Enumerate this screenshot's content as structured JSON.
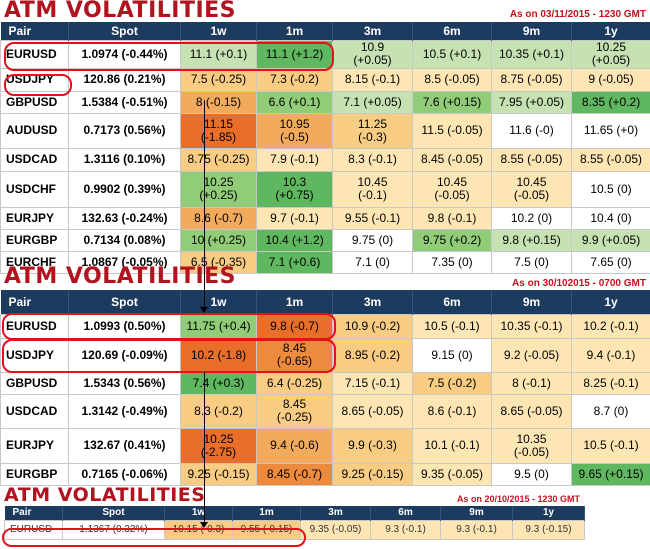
{
  "colors": {
    "header_bg": "#1d3a5f",
    "title_red": "#b3121f",
    "highlight_red": "#e3111b",
    "scale": {
      "g1": "#5fb85f",
      "g2": "#91cc78",
      "g3": "#c6e2b2",
      "y1": "#fde6b3",
      "y2": "#f8cc82",
      "y3": "#f2aa5c",
      "y4": "#ec8a3d",
      "o1": "#e96e2a",
      "w": "#ffffff"
    }
  },
  "panel1": {
    "title": "ATM VOLATILITIES",
    "asof": "As on 03/11/2015 - 1230 GMT",
    "headers": [
      "Pair",
      "Spot",
      "1w",
      "1m",
      "3m",
      "6m",
      "9m",
      "1y"
    ],
    "rows": [
      {
        "pair": "EURUSD",
        "spot": "1.0974 (-0.44%)",
        "cells": [
          {
            "t": "11.1 (+0.1)",
            "c": "g3"
          },
          {
            "t": "11.1 (+1.2)",
            "c": "g1"
          },
          {
            "t": "10.9\n(+0.05)",
            "c": "g3"
          },
          {
            "t": "10.5 (+0.1)",
            "c": "g3"
          },
          {
            "t": "10.35 (+0.1)",
            "c": "g3"
          },
          {
            "t": "10.25\n(+0.05)",
            "c": "g3"
          }
        ]
      },
      {
        "pair": "USDJPY",
        "spot": "120.86 (0.21%)",
        "cells": [
          {
            "t": "7.5 (-0.25)",
            "c": "y2"
          },
          {
            "t": "7.3 (-0.2)",
            "c": "y2"
          },
          {
            "t": "8.15 (-0.1)",
            "c": "y1"
          },
          {
            "t": "8.5 (-0.05)",
            "c": "y1"
          },
          {
            "t": "8.75 (-0.05)",
            "c": "y1"
          },
          {
            "t": "9 (-0.05)",
            "c": "y1"
          }
        ]
      },
      {
        "pair": "GBPUSD",
        "spot": "1.5384 (-0.51%)",
        "cells": [
          {
            "t": "8 (-0.15)",
            "c": "y3"
          },
          {
            "t": "6.6 (+0.1)",
            "c": "g2"
          },
          {
            "t": "7.1 (+0.05)",
            "c": "g3"
          },
          {
            "t": "7.6 (+0.15)",
            "c": "g2"
          },
          {
            "t": "7.95 (+0.05)",
            "c": "g3"
          },
          {
            "t": "8.35 (+0.2)",
            "c": "g1"
          }
        ]
      },
      {
        "pair": "AUDUSD",
        "spot": "0.7173 (0.56%)",
        "cells": [
          {
            "t": "11.15\n(-1.85)",
            "c": "o1"
          },
          {
            "t": "10.95\n(-0.5)",
            "c": "y3"
          },
          {
            "t": "11.25\n(-0.3)",
            "c": "y2"
          },
          {
            "t": "11.5 (-0.05)",
            "c": "y1"
          },
          {
            "t": "11.6 (-0)",
            "c": "w"
          },
          {
            "t": "11.65 (+0)",
            "c": "w"
          }
        ]
      },
      {
        "pair": "USDCAD",
        "spot": "1.3116 (0.10%)",
        "cells": [
          {
            "t": "8.75 (-0.25)",
            "c": "y2"
          },
          {
            "t": "7.9 (-0.1)",
            "c": "y1"
          },
          {
            "t": "8.3 (-0.1)",
            "c": "y1"
          },
          {
            "t": "8.45 (-0.05)",
            "c": "y1"
          },
          {
            "t": "8.55 (-0.05)",
            "c": "y1"
          },
          {
            "t": "8.55 (-0.05)",
            "c": "y1"
          }
        ]
      },
      {
        "pair": "USDCHF",
        "spot": "0.9902 (0.39%)",
        "cells": [
          {
            "t": "10.25\n(+0.25)",
            "c": "g2"
          },
          {
            "t": "10.3\n(+0.75)",
            "c": "g1"
          },
          {
            "t": "10.45\n(-0.1)",
            "c": "y1"
          },
          {
            "t": "10.45\n(-0.05)",
            "c": "y1"
          },
          {
            "t": "10.45\n(-0.05)",
            "c": "y1"
          },
          {
            "t": "10.5 (0)",
            "c": "w"
          }
        ]
      },
      {
        "pair": "EURJPY",
        "spot": "132.63 (-0.24%)",
        "cells": [
          {
            "t": "8.6 (-0.7)",
            "c": "y3"
          },
          {
            "t": "9.7 (-0.1)",
            "c": "y1"
          },
          {
            "t": "9.55 (-0.1)",
            "c": "y1"
          },
          {
            "t": "9.8 (-0.1)",
            "c": "y1"
          },
          {
            "t": "10.2 (0)",
            "c": "w"
          },
          {
            "t": "10.4 (0)",
            "c": "w"
          }
        ]
      },
      {
        "pair": "EURGBP",
        "spot": "0.7134 (0.08%)",
        "cells": [
          {
            "t": "10 (+0.25)",
            "c": "g2"
          },
          {
            "t": "10.4 (+1.2)",
            "c": "g1"
          },
          {
            "t": "9.75 (0)",
            "c": "w"
          },
          {
            "t": "9.75 (+0.2)",
            "c": "g2"
          },
          {
            "t": "9.8 (+0.15)",
            "c": "g3"
          },
          {
            "t": "9.9 (+0.05)",
            "c": "g3"
          }
        ]
      },
      {
        "pair": "EURCHF",
        "spot": "1.0867 (-0.05%)",
        "cells": [
          {
            "t": "6.5 (-0.35)",
            "c": "y2"
          },
          {
            "t": "7.1 (+0.6)",
            "c": "g1"
          },
          {
            "t": "7.1 (0)",
            "c": "w"
          },
          {
            "t": "7.35 (0)",
            "c": "w"
          },
          {
            "t": "7.5 (0)",
            "c": "w"
          },
          {
            "t": "7.65 (0)",
            "c": "w"
          }
        ]
      }
    ]
  },
  "panel2": {
    "title": "ATM VOLATILITIES",
    "asof": "As on 30/102015 - 0700 GMT",
    "headers": [
      "Pair",
      "Spot",
      "1w",
      "1m",
      "3m",
      "6m",
      "9m",
      "1y"
    ],
    "rows": [
      {
        "pair": "EURUSD",
        "spot": "1.0993 (0.50%)",
        "cells": [
          {
            "t": "11.75 (+0.4)",
            "c": "g2"
          },
          {
            "t": "9.8 (-0.7)",
            "c": "o1"
          },
          {
            "t": "10.9 (-0.2)",
            "c": "y2"
          },
          {
            "t": "10.5 (-0.1)",
            "c": "y1"
          },
          {
            "t": "10.35 (-0.1)",
            "c": "y1"
          },
          {
            "t": "10.2 (-0.1)",
            "c": "y1"
          }
        ]
      },
      {
        "pair": "USDJPY",
        "spot": "120.69 (-0.09%)",
        "cells": [
          {
            "t": "10.2 (-1.8)",
            "c": "o1"
          },
          {
            "t": "8.45\n(-0.65)",
            "c": "y4"
          },
          {
            "t": "8.95 (-0.2)",
            "c": "y2"
          },
          {
            "t": "9.15 (0)",
            "c": "w"
          },
          {
            "t": "9.2 (-0.05)",
            "c": "y1"
          },
          {
            "t": "9.4 (-0.1)",
            "c": "y1"
          }
        ]
      },
      {
        "pair": "GBPUSD",
        "spot": "1.5343 (0.56%)",
        "cells": [
          {
            "t": "7.4 (+0.3)",
            "c": "g1"
          },
          {
            "t": "6.4 (-0.25)",
            "c": "y2"
          },
          {
            "t": "7.15 (-0.1)",
            "c": "y1"
          },
          {
            "t": "7.5 (-0.2)",
            "c": "y2"
          },
          {
            "t": "8 (-0.1)",
            "c": "y1"
          },
          {
            "t": "8.25 (-0.1)",
            "c": "y1"
          }
        ]
      },
      {
        "pair": "USDCAD",
        "spot": "1.3142 (-0.49%)",
        "cells": [
          {
            "t": "8.3 (-0.2)",
            "c": "y2"
          },
          {
            "t": "8.45\n(-0.25)",
            "c": "y2"
          },
          {
            "t": "8.65 (-0.05)",
            "c": "y1"
          },
          {
            "t": "8.6 (-0.1)",
            "c": "y1"
          },
          {
            "t": "8.65 (-0.05)",
            "c": "y1"
          },
          {
            "t": "8.7 (0)",
            "c": "w"
          }
        ]
      },
      {
        "pair": "EURJPY",
        "spot": "132.67 (0.41%)",
        "cells": [
          {
            "t": "10.25\n(-2.75)",
            "c": "o1"
          },
          {
            "t": "9.4 (-0.6)",
            "c": "y3"
          },
          {
            "t": "9.9 (-0.3)",
            "c": "y2"
          },
          {
            "t": "10.1 (-0.1)",
            "c": "y1"
          },
          {
            "t": "10.35\n(-0.05)",
            "c": "y1"
          },
          {
            "t": "10.5 (-0.1)",
            "c": "y1"
          }
        ]
      },
      {
        "pair": "EURGBP",
        "spot": "0.7165 (-0.06%)",
        "cells": [
          {
            "t": "9.25 (-0.15)",
            "c": "y2"
          },
          {
            "t": "8.45 (-0.7)",
            "c": "y4"
          },
          {
            "t": "9.25 (-0.15)",
            "c": "y2"
          },
          {
            "t": "9.35 (-0.05)",
            "c": "y1"
          },
          {
            "t": "9.5 (0)",
            "c": "w"
          },
          {
            "t": "9.65 (+0.15)",
            "c": "g1"
          }
        ]
      }
    ]
  },
  "panel3": {
    "title": "ATM VOLATILITIES",
    "asof": "As on 20/10/2015 - 1230 GMT",
    "headers": [
      "Pair",
      "Spot",
      "1w",
      "1m",
      "3m",
      "6m",
      "9m",
      "1y"
    ],
    "rows": [
      {
        "pair": "EURUSD",
        "spot": "1.1367 (0.32%)",
        "cells": [
          {
            "t": "10.15 (-0.3)",
            "c": "y2"
          },
          {
            "t": "9.55 (-0.15)",
            "c": "y2"
          },
          {
            "t": "9.35 (-0.05)",
            "c": "y1"
          },
          {
            "t": "9.3 (-0.1)",
            "c": "y1"
          },
          {
            "t": "9.3 (-0.1)",
            "c": "y1"
          },
          {
            "t": "9.3 (-0.15)",
            "c": "y1"
          }
        ]
      }
    ]
  }
}
